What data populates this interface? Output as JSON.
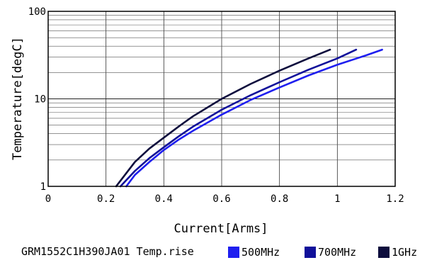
{
  "chart_data": {
    "type": "line",
    "title": "",
    "xlabel": "Current[Arms]",
    "ylabel": "Temperature[degC]",
    "xlim": [
      0,
      1.2
    ],
    "ylim": [
      1,
      100
    ],
    "yscale": "log",
    "grid": true,
    "x_ticks": [
      "0",
      "0.2",
      "0.4",
      "0.6",
      "0.8",
      "1",
      "1.2"
    ],
    "y_ticks": [
      "1",
      "10",
      "100"
    ],
    "legend_caption": "GRM1552C1H390JA01 Temp.rise",
    "legend_position": "bottom",
    "series": [
      {
        "name": "500MHz",
        "color": "#1f1fef",
        "x": [
          0.27,
          0.3,
          0.35,
          0.4,
          0.45,
          0.5,
          0.6,
          0.7,
          0.8,
          0.9,
          1.0,
          1.1,
          1.155
        ],
        "y": [
          1.0,
          1.35,
          1.9,
          2.6,
          3.4,
          4.3,
          6.6,
          9.7,
          13.5,
          18.5,
          24.5,
          31.5,
          36.5
        ]
      },
      {
        "name": "700MHz",
        "color": "#10109a",
        "x": [
          0.25,
          0.3,
          0.35,
          0.4,
          0.45,
          0.5,
          0.6,
          0.7,
          0.8,
          0.9,
          1.0,
          1.065
        ],
        "y": [
          1.0,
          1.5,
          2.1,
          2.8,
          3.7,
          4.8,
          7.5,
          11.0,
          15.5,
          21.5,
          29.0,
          36.5
        ]
      },
      {
        "name": "1GHz",
        "color": "#0d0d3d",
        "x": [
          0.235,
          0.3,
          0.35,
          0.4,
          0.45,
          0.5,
          0.6,
          0.7,
          0.8,
          0.9,
          0.975
        ],
        "y": [
          1.0,
          1.9,
          2.7,
          3.6,
          4.8,
          6.3,
          10.0,
          14.8,
          21.0,
          29.0,
          36.5
        ]
      }
    ]
  }
}
